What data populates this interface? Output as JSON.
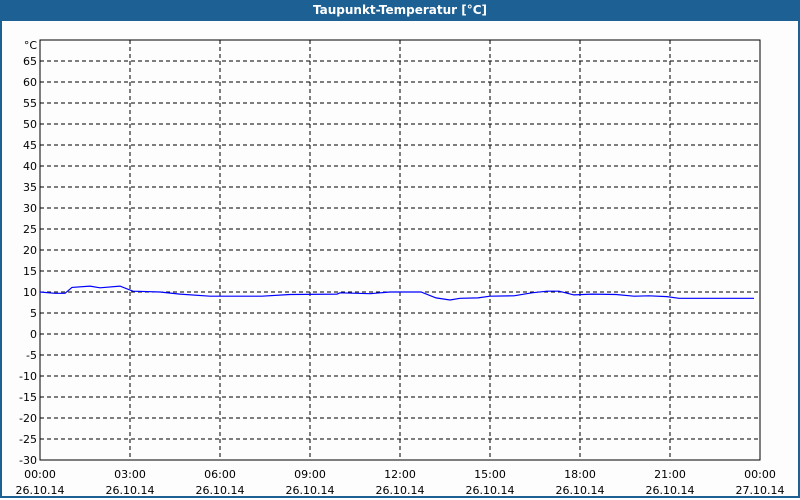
{
  "window": {
    "title": "Taupunkt-Temperatur [°C]"
  },
  "colors": {
    "titlebar": "#1c6094",
    "series": "#0000ff",
    "grid": "#000000"
  },
  "chart_data": {
    "type": "line",
    "title": "Taupunkt-Temperatur [°C]",
    "ylabel": "°C",
    "ylim": [
      -30,
      70
    ],
    "yticks": [
      65,
      60,
      55,
      50,
      45,
      40,
      35,
      30,
      25,
      20,
      15,
      10,
      5,
      0,
      -5,
      -10,
      -15,
      -20,
      -25,
      -30
    ],
    "xlim": [
      "26.10.14 00:00",
      "27.10.14 00:00"
    ],
    "xticks": [
      {
        "time": "00:00",
        "date": "26.10.14"
      },
      {
        "time": "03:00",
        "date": "26.10.14"
      },
      {
        "time": "06:00",
        "date": "26.10.14"
      },
      {
        "time": "09:00",
        "date": "26.10.14"
      },
      {
        "time": "12:00",
        "date": "26.10.14"
      },
      {
        "time": "15:00",
        "date": "26.10.14"
      },
      {
        "time": "18:00",
        "date": "26.10.14"
      },
      {
        "time": "21:00",
        "date": "26.10.14"
      },
      {
        "time": "00:00",
        "date": "27.10.14"
      }
    ],
    "grid": true,
    "series": [
      {
        "x": [
          "00:00",
          "00:30",
          "00:50",
          "01:04",
          "01:40",
          "02:00",
          "02:40",
          "03:06",
          "04:00",
          "04:40",
          "05:40",
          "07:24",
          "08:20",
          "09:54",
          "10:00",
          "11:00",
          "11:40",
          "12:00",
          "12:42",
          "13:12",
          "13:40",
          "14:00",
          "14:36",
          "15:00",
          "15:48",
          "16:24",
          "16:54",
          "17:18",
          "17:48",
          "18:24",
          "19:12",
          "19:48",
          "20:18",
          "20:54",
          "21:18",
          "23:48"
        ],
        "y": [
          10.0,
          9.7,
          9.7,
          11.1,
          11.4,
          11.0,
          11.4,
          10.2,
          10.0,
          9.5,
          9.0,
          9.0,
          9.4,
          9.5,
          9.8,
          9.6,
          10.0,
          10.0,
          10.0,
          8.6,
          8.1,
          8.5,
          8.6,
          9.0,
          9.1,
          9.8,
          10.2,
          10.2,
          9.3,
          9.5,
          9.4,
          9.0,
          9.1,
          8.9,
          8.5,
          8.5
        ]
      }
    ]
  }
}
